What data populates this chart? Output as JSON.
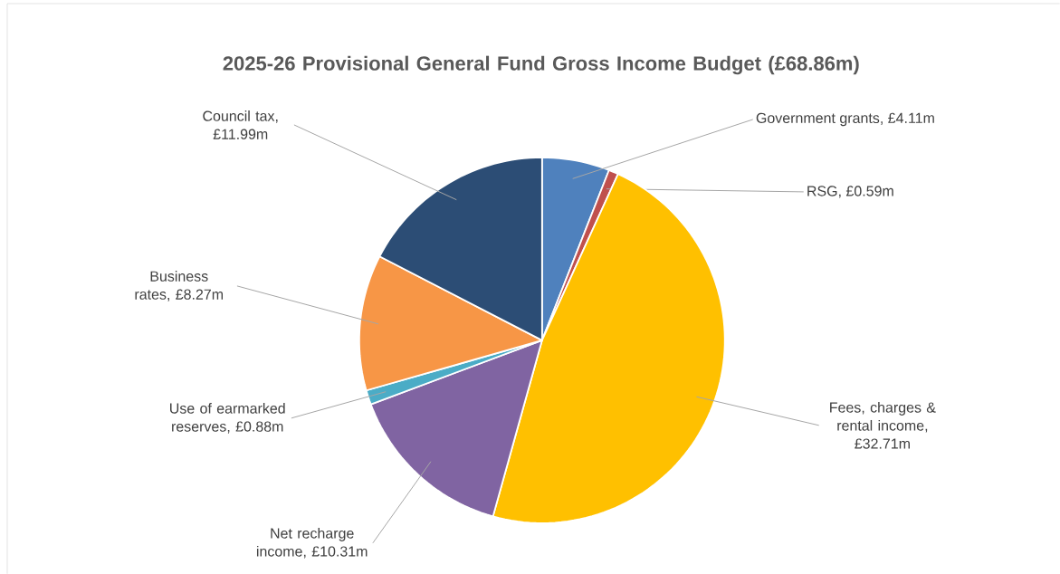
{
  "chart_data": {
    "type": "pie",
    "title": "2025-26 Provisional General Fund Gross Income Budget (£68.86m)",
    "categories": [
      "Government grants",
      "RSG",
      "Fees, charges & rental income",
      "Net recharge income",
      "Use of earmarked reserves",
      "Business rates",
      "Council tax"
    ],
    "values": [
      4.11,
      0.59,
      32.71,
      10.31,
      0.88,
      8.27,
      11.99
    ],
    "colors": [
      "#4f81bd",
      "#c0504d",
      "#ffc000",
      "#8064a2",
      "#4bacc6",
      "#f79646",
      "#2c4d75"
    ],
    "value_labels": [
      ", £4.11m",
      ", £0.59m",
      ", £32.71m",
      ", £10.31m",
      ", £0.88m",
      ", £8.27m",
      ", £11.99m"
    ]
  }
}
